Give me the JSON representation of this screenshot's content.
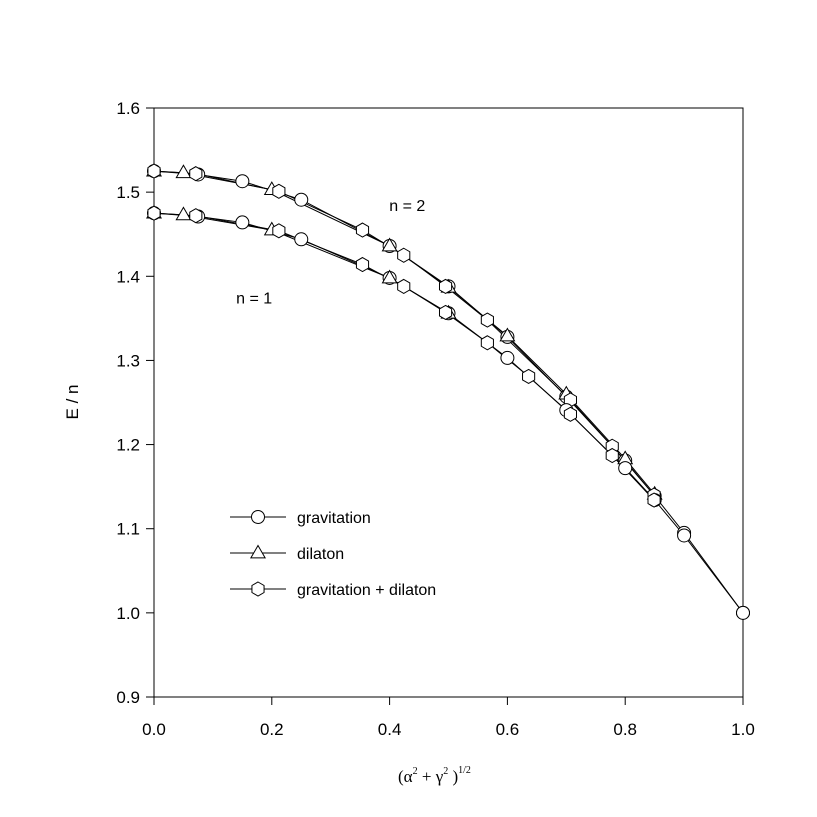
{
  "chart_data": {
    "type": "line",
    "title": "",
    "ylabel": "E / n",
    "xlabel": {
      "open": "(",
      "alpha": "α",
      "sup2a": "2",
      "plus": " + ",
      "gamma": "γ",
      "sup2b": "2",
      "close": " )",
      "exp": "1/2"
    },
    "xlim": [
      0.0,
      1.0
    ],
    "ylim": [
      0.9,
      1.6
    ],
    "xticks": [
      "0.0",
      "0.2",
      "0.4",
      "0.6",
      "0.8",
      "1.0"
    ],
    "yticks": [
      "0.9",
      "1.0",
      "1.1",
      "1.2",
      "1.3",
      "1.4",
      "1.5",
      "1.6"
    ],
    "grid": false,
    "legend_position": "lower-left",
    "annotations": [
      {
        "text": "n = 2",
        "x": 0.43,
        "y": 1.485
      },
      {
        "text": "n = 1",
        "x": 0.17,
        "y": 1.375
      }
    ],
    "series": [
      {
        "name": "gravitation",
        "group": "n = 2",
        "marker": "circle",
        "x": [
          0.0,
          0.075,
          0.15,
          0.25,
          0.4,
          0.5,
          0.6,
          0.7,
          0.8,
          0.85,
          0.9,
          1.0
        ],
        "y": [
          1.525,
          1.521,
          1.513,
          1.491,
          1.436,
          1.388,
          1.328,
          1.257,
          1.181,
          1.139,
          1.095,
          1.0
        ]
      },
      {
        "name": "dilaton",
        "group": "n = 2",
        "marker": "triangle",
        "x": [
          0.0,
          0.05,
          0.2,
          0.4,
          0.5,
          0.6,
          0.7,
          0.8,
          0.85
        ],
        "y": [
          1.525,
          1.523,
          1.503,
          1.436,
          1.387,
          1.329,
          1.26,
          1.183,
          1.141
        ]
      },
      {
        "name": "gravitation + dilaton",
        "group": "n = 2",
        "marker": "hexagon",
        "x": [
          0.0,
          0.071,
          0.212,
          0.354,
          0.424,
          0.495,
          0.566,
          0.707,
          0.778,
          0.849
        ],
        "y": [
          1.525,
          1.522,
          1.501,
          1.455,
          1.425,
          1.388,
          1.348,
          1.253,
          1.198,
          1.14
        ]
      },
      {
        "name": "gravitation",
        "group": "n = 1",
        "marker": "circle",
        "x": [
          0.0,
          0.075,
          0.15,
          0.25,
          0.4,
          0.5,
          0.6,
          0.7,
          0.8,
          0.85,
          0.9,
          1.0
        ],
        "y": [
          1.475,
          1.471,
          1.464,
          1.444,
          1.398,
          1.356,
          1.303,
          1.241,
          1.172,
          1.134,
          1.092,
          1.0
        ]
      },
      {
        "name": "dilaton",
        "group": "n = 1",
        "marker": "triangle",
        "x": [
          0.0,
          0.05,
          0.2,
          0.4,
          0.5
        ],
        "y": [
          1.475,
          1.473,
          1.455,
          1.398,
          1.356
        ]
      },
      {
        "name": "gravitation + dilaton",
        "group": "n = 1",
        "marker": "hexagon",
        "x": [
          0.0,
          0.071,
          0.212,
          0.354,
          0.424,
          0.495,
          0.566,
          0.636,
          0.707,
          0.778,
          0.849
        ],
        "y": [
          1.475,
          1.472,
          1.454,
          1.414,
          1.388,
          1.357,
          1.321,
          1.281,
          1.236,
          1.187,
          1.134
        ]
      }
    ],
    "legend": [
      {
        "label": "gravitation",
        "marker": "circle"
      },
      {
        "label": "dilaton",
        "marker": "triangle"
      },
      {
        "label": "gravitation + dilaton",
        "marker": "hexagon"
      }
    ]
  }
}
